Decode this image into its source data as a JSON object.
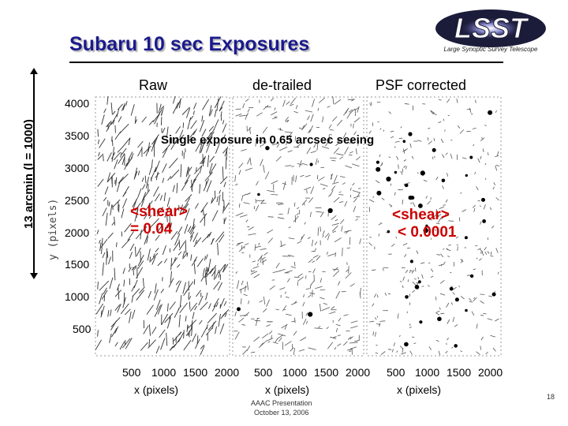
{
  "slide": {
    "title": "Subaru 10 sec Exposures",
    "logo_text": "LSST",
    "logo_subtitle": "Large Synoptic Survey Telescope",
    "column_headers": [
      "Raw",
      "de-trailed",
      "PSF corrected"
    ],
    "vertical_label": "13 arcmin  (l = 1000)",
    "y_axis_label": "y (pixels)",
    "y_ticks": [
      "4000",
      "3500",
      "3000",
      "2500",
      "2000",
      "1500",
      "1000",
      "500"
    ],
    "x_ticks": [
      "500",
      "1000",
      "1500",
      "2000"
    ],
    "x_axis_label": "x (pixels)",
    "note": "Single exposure in 0.65 arcsec seeing",
    "shear_raw": [
      "<shear>",
      "= 0.04"
    ],
    "shear_corrected": [
      "<shear>",
      "< 0.0001"
    ],
    "footer": [
      "AAAC Presentation",
      "October 13, 2006"
    ],
    "page_number": "18"
  }
}
